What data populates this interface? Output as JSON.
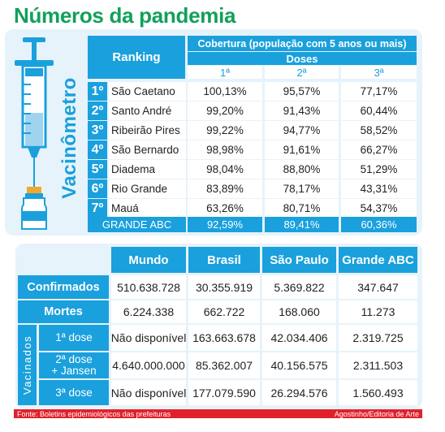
{
  "title": "Números da pandemia",
  "side_label": "Vacinômetro",
  "colors": {
    "accent": "#1aa0dc",
    "title": "#12a05a",
    "panel": "#e6f3fb",
    "footer": "#e0212b"
  },
  "chart_data": [
    {
      "type": "table",
      "header": {
        "ranking": "Ranking",
        "coverage": "Cobertura (população com 5 anos ou mais)",
        "doses_label": "Doses",
        "doses": [
          "1ª",
          "2ª",
          "3ª"
        ]
      },
      "rows": [
        {
          "rank": "1º",
          "city": "São Caetano",
          "values": [
            "100,13%",
            "95,57%",
            "77,17%"
          ]
        },
        {
          "rank": "2º",
          "city": "Santo André",
          "values": [
            "99,20%",
            "91,43%",
            "60,44%"
          ]
        },
        {
          "rank": "3º",
          "city": "Ribeirão Pires",
          "values": [
            "99,22%",
            "94,77%",
            "58,52%"
          ]
        },
        {
          "rank": "4º",
          "city": "São Bernardo",
          "values": [
            "98,98%",
            "91,61%",
            "66,27%"
          ]
        },
        {
          "rank": "5º",
          "city": "Diadema",
          "values": [
            "98,04%",
            "88,80%",
            "51,29%"
          ]
        },
        {
          "rank": "6º",
          "city": "Rio Grande",
          "values": [
            "83,89%",
            "78,17%",
            "43,31%"
          ]
        },
        {
          "rank": "7º",
          "city": "Mauá",
          "values": [
            "63,26%",
            "80,71%",
            "54,37%"
          ]
        }
      ],
      "total": {
        "label": "GRANDE ABC",
        "values": [
          "92,59%",
          "89,41%",
          "60,36%"
        ]
      }
    },
    {
      "type": "table",
      "columns": [
        "Mundo",
        "Brasil",
        "São Paulo",
        "Grande ABC"
      ],
      "rows": [
        {
          "label": "Confirmados",
          "values": [
            "510.638.728",
            "30.355.919",
            "5.369.822",
            "347.647"
          ]
        },
        {
          "label": "Mortes",
          "values": [
            "6.224.338",
            "662.722",
            "168.060",
            "11.273"
          ]
        }
      ],
      "vaccinated_label": "Vacinados",
      "vaccinated_rows": [
        {
          "label": "1ª dose",
          "values": [
            "Não disponível",
            "163.663.678",
            "42.034.406",
            "2.319.725"
          ]
        },
        {
          "label": "2ª dose\n+ Jansen",
          "values": [
            "4.640.000.000",
            "85.362.007",
            "40.156.575",
            "2.311.503"
          ]
        },
        {
          "label": "3ª dose",
          "values": [
            "Não disponível",
            "177.079.590",
            "26.294.576",
            "1.560.493"
          ]
        }
      ]
    }
  ],
  "footer": {
    "source": "Fonte: Boletins epidemiológicos das prefeituras",
    "credit": "Agostinho/Editoria de Arte"
  }
}
